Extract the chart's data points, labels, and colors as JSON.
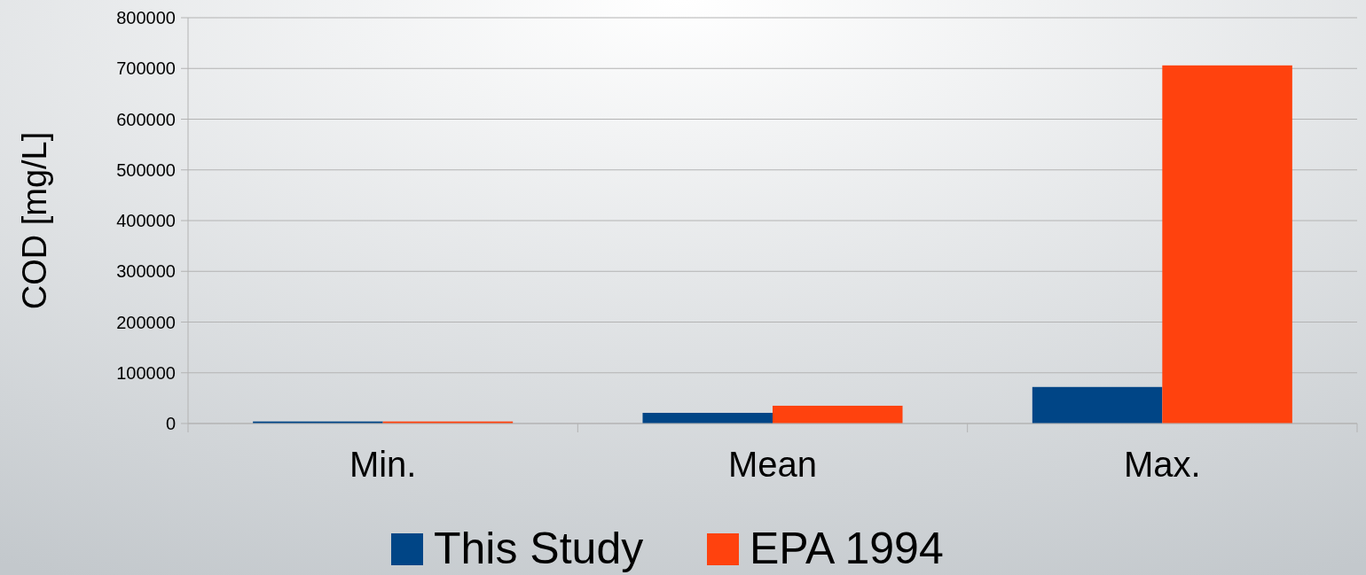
{
  "chart_data": {
    "type": "bar",
    "ylabel": "COD [mg/L]",
    "categories": [
      "Min.",
      "Mean",
      "Max."
    ],
    "series": [
      {
        "name": "This Study",
        "color": "#004586",
        "values": [
          4000,
          21000,
          72000
        ]
      },
      {
        "name": "EPA 1994",
        "color": "#ff420e",
        "values": [
          4000,
          35000,
          706000
        ]
      }
    ],
    "ylim": [
      0,
      800000
    ],
    "yticks": [
      0,
      100000,
      200000,
      300000,
      400000,
      500000,
      600000,
      700000,
      800000
    ],
    "grid": "y",
    "legend": "bottom"
  }
}
